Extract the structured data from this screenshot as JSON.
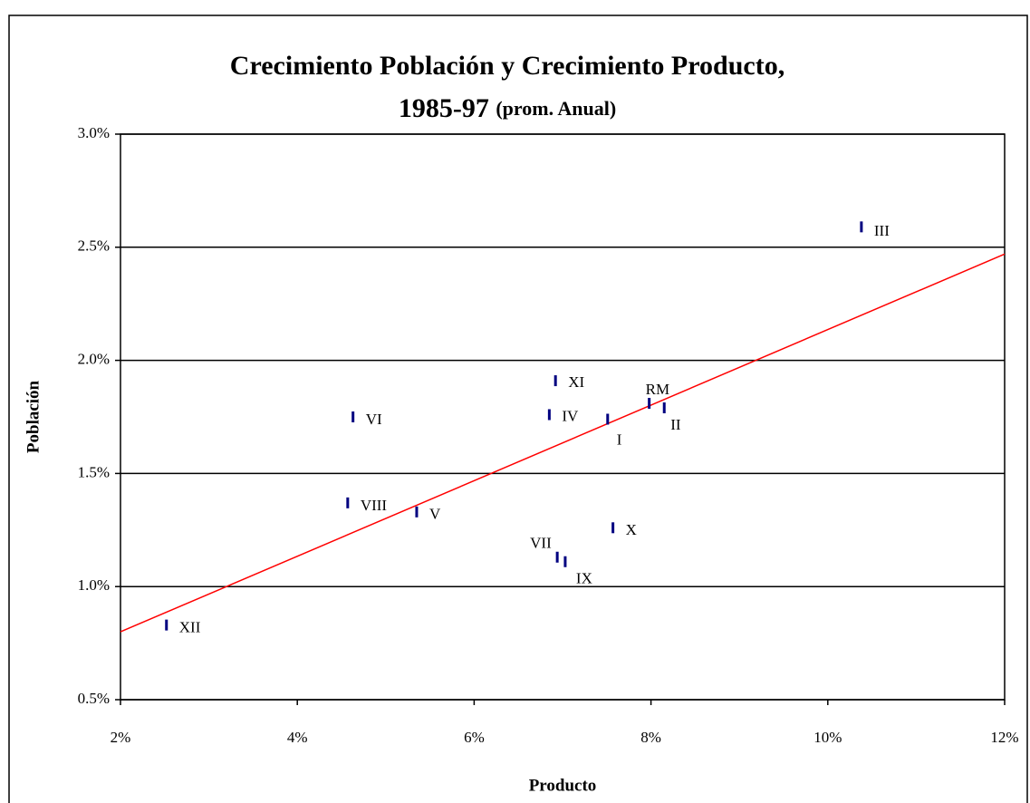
{
  "chart_data": {
    "type": "scatter",
    "title": [
      "Crecimiento Población y Crecimiento Producto,",
      "1985-97",
      "(prom. Anual)"
    ],
    "x_label": "Producto",
    "y_label": "Población",
    "labels": [
      "III",
      "XI",
      "RM",
      "II",
      "IV",
      "I",
      "VI",
      "VIII",
      "V",
      "X",
      "VII",
      "IX",
      "XII"
    ],
    "x": [
      10.38,
      6.92,
      7.98,
      8.15,
      6.85,
      7.51,
      4.63,
      4.57,
      5.35,
      7.57,
      6.94,
      7.03,
      2.52
    ],
    "values": [
      2.59,
      1.91,
      1.81,
      1.79,
      1.76,
      1.74,
      1.75,
      1.37,
      1.33,
      1.26,
      1.13,
      1.11,
      0.83
    ],
    "color": "#000080",
    "trendline": {
      "x": [
        2,
        12
      ],
      "values": [
        0.8,
        2.47
      ],
      "color": "#ff0000"
    },
    "xlim": [
      2,
      12
    ],
    "xticks": [
      {
        "value": 2,
        "label": "2%"
      },
      {
        "value": 4,
        "label": "4%"
      },
      {
        "value": 6,
        "label": "6%"
      },
      {
        "value": 8,
        "label": "8%"
      },
      {
        "value": 10,
        "label": "10%"
      },
      {
        "value": 12,
        "label": "12%"
      }
    ],
    "ylim": [
      0.5,
      3.0
    ],
    "yticks": [
      {
        "value": 0.5,
        "label": "0.5%"
      },
      {
        "value": 1.0,
        "label": "1.0%"
      },
      {
        "value": 1.5,
        "label": "1.5%"
      },
      {
        "value": 2.0,
        "label": "2.0%"
      },
      {
        "value": 2.5,
        "label": "2.5%"
      },
      {
        "value": 3.0,
        "label": "3.0%"
      }
    ],
    "grid": true
  }
}
